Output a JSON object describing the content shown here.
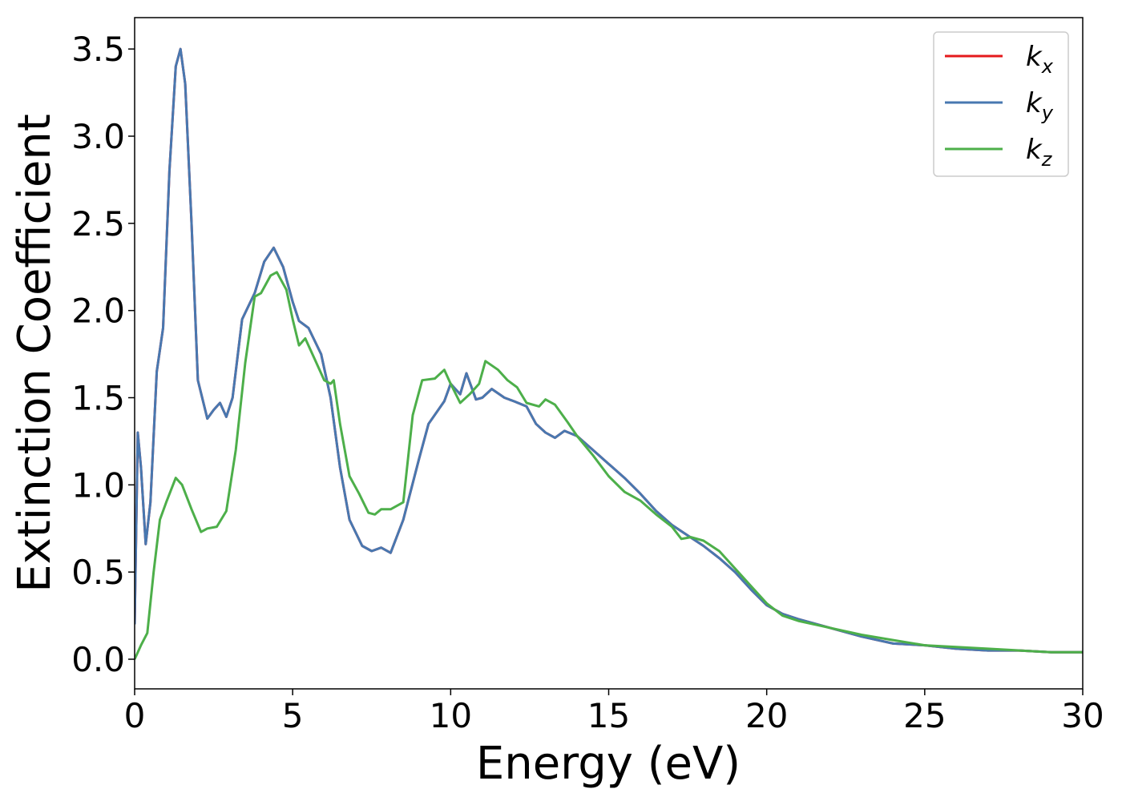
{
  "chart_data": {
    "type": "line",
    "x_label": "Energy (eV)",
    "y_label": "Extinction Coefficient",
    "xlim": [
      0,
      30
    ],
    "xticks": [
      0,
      5,
      10,
      15,
      20,
      25,
      30
    ],
    "ylim": [
      -0.17,
      3.68
    ],
    "yticks": [
      {
        "value": 0,
        "label": "0.0"
      },
      0.5,
      {
        "value": 1,
        "label": "1.0"
      },
      1.5,
      {
        "value": 2,
        "label": "2.0"
      },
      2.5,
      {
        "value": 3,
        "label": "3.0"
      },
      3.5
    ],
    "legend": "upper right",
    "series": [
      {
        "name": "kx",
        "color": "#e41a1c",
        "x": [
          0,
          0.1,
          0.2,
          0.35,
          0.5,
          0.7,
          0.9,
          1.1,
          1.3,
          1.45,
          1.6,
          1.8,
          2.0,
          2.3,
          2.5,
          2.7,
          2.9,
          3.1,
          3.4,
          3.8,
          4.1,
          4.4,
          4.7,
          5.0,
          5.2,
          5.5,
          5.9,
          6.2,
          6.5,
          6.8,
          7.2,
          7.5,
          7.8,
          8.1,
          8.5,
          9.0,
          9.3,
          9.8,
          10.0,
          10.3,
          10.5,
          10.8,
          11.0,
          11.3,
          11.7,
          12.0,
          12.4,
          12.7,
          13.0,
          13.3,
          13.6,
          14.0,
          14.5,
          15.0,
          15.5,
          16.0,
          16.5,
          17.0,
          17.5,
          18.0,
          18.5,
          19.0,
          19.5,
          20.0,
          20.5,
          21,
          22,
          23,
          24,
          25,
          26,
          27,
          28,
          29,
          30
        ],
        "values": [
          0.2,
          1.3,
          1.1,
          0.66,
          0.9,
          1.65,
          1.9,
          2.8,
          3.4,
          3.5,
          3.3,
          2.5,
          1.6,
          1.38,
          1.43,
          1.47,
          1.39,
          1.5,
          1.95,
          2.1,
          2.28,
          2.36,
          2.25,
          2.05,
          1.94,
          1.9,
          1.75,
          1.5,
          1.1,
          0.8,
          0.65,
          0.62,
          0.64,
          0.61,
          0.8,
          1.15,
          1.35,
          1.48,
          1.58,
          1.52,
          1.64,
          1.49,
          1.5,
          1.55,
          1.5,
          1.48,
          1.45,
          1.35,
          1.3,
          1.27,
          1.31,
          1.28,
          1.2,
          1.12,
          1.04,
          0.95,
          0.85,
          0.77,
          0.71,
          0.65,
          0.58,
          0.5,
          0.4,
          0.31,
          0.26,
          0.23,
          0.18,
          0.13,
          0.09,
          0.08,
          0.06,
          0.05,
          0.05,
          0.04,
          0.04
        ]
      },
      {
        "name": "ky",
        "color": "#4878b0",
        "x": [
          0,
          0.1,
          0.2,
          0.35,
          0.5,
          0.7,
          0.9,
          1.1,
          1.3,
          1.45,
          1.6,
          1.8,
          2.0,
          2.3,
          2.5,
          2.7,
          2.9,
          3.1,
          3.4,
          3.8,
          4.1,
          4.4,
          4.7,
          5.0,
          5.2,
          5.5,
          5.9,
          6.2,
          6.5,
          6.8,
          7.2,
          7.5,
          7.8,
          8.1,
          8.5,
          9.0,
          9.3,
          9.8,
          10.0,
          10.3,
          10.5,
          10.8,
          11.0,
          11.3,
          11.7,
          12.0,
          12.4,
          12.7,
          13.0,
          13.3,
          13.6,
          14.0,
          14.5,
          15.0,
          15.5,
          16.0,
          16.5,
          17.0,
          17.5,
          18.0,
          18.5,
          19.0,
          19.5,
          20.0,
          20.5,
          21,
          22,
          23,
          24,
          25,
          26,
          27,
          28,
          29,
          30
        ],
        "values": [
          0.2,
          1.3,
          1.1,
          0.66,
          0.9,
          1.65,
          1.9,
          2.8,
          3.4,
          3.5,
          3.3,
          2.5,
          1.6,
          1.38,
          1.43,
          1.47,
          1.39,
          1.5,
          1.95,
          2.1,
          2.28,
          2.36,
          2.25,
          2.05,
          1.94,
          1.9,
          1.75,
          1.5,
          1.1,
          0.8,
          0.65,
          0.62,
          0.64,
          0.61,
          0.8,
          1.15,
          1.35,
          1.48,
          1.58,
          1.52,
          1.64,
          1.49,
          1.5,
          1.55,
          1.5,
          1.48,
          1.45,
          1.35,
          1.3,
          1.27,
          1.31,
          1.28,
          1.2,
          1.12,
          1.04,
          0.95,
          0.85,
          0.77,
          0.71,
          0.65,
          0.58,
          0.5,
          0.4,
          0.31,
          0.26,
          0.23,
          0.18,
          0.13,
          0.09,
          0.08,
          0.06,
          0.05,
          0.05,
          0.04,
          0.04
        ]
      },
      {
        "name": "kz",
        "color": "#4daf4a",
        "x": [
          0,
          0.2,
          0.4,
          0.6,
          0.8,
          1.0,
          1.3,
          1.5,
          1.8,
          2.1,
          2.3,
          2.6,
          2.9,
          3.2,
          3.5,
          3.8,
          4.0,
          4.3,
          4.5,
          4.8,
          5.0,
          5.2,
          5.4,
          5.7,
          6.0,
          6.2,
          6.3,
          6.5,
          6.8,
          7.1,
          7.4,
          7.6,
          7.8,
          8.1,
          8.5,
          8.8,
          9.1,
          9.5,
          9.8,
          10.0,
          10.3,
          10.6,
          10.9,
          11.1,
          11.5,
          11.8,
          12.1,
          12.4,
          12.8,
          13.0,
          13.3,
          13.7,
          14.0,
          14.5,
          15.0,
          15.5,
          16.0,
          16.5,
          17.0,
          17.3,
          17.6,
          18.0,
          18.5,
          19.0,
          19.5,
          20.0,
          20.5,
          21,
          22,
          23,
          24,
          25,
          26,
          27,
          28,
          29,
          30
        ],
        "values": [
          0.0,
          0.08,
          0.15,
          0.5,
          0.8,
          0.9,
          1.04,
          1.0,
          0.86,
          0.73,
          0.75,
          0.76,
          0.85,
          1.2,
          1.7,
          2.08,
          2.1,
          2.2,
          2.22,
          2.12,
          1.95,
          1.8,
          1.84,
          1.72,
          1.6,
          1.58,
          1.6,
          1.35,
          1.05,
          0.95,
          0.84,
          0.83,
          0.86,
          0.86,
          0.9,
          1.4,
          1.6,
          1.61,
          1.66,
          1.58,
          1.47,
          1.52,
          1.58,
          1.71,
          1.66,
          1.6,
          1.56,
          1.47,
          1.45,
          1.49,
          1.46,
          1.36,
          1.28,
          1.17,
          1.05,
          0.96,
          0.91,
          0.83,
          0.76,
          0.69,
          0.7,
          0.68,
          0.62,
          0.52,
          0.42,
          0.32,
          0.25,
          0.22,
          0.18,
          0.14,
          0.11,
          0.08,
          0.07,
          0.06,
          0.05,
          0.04,
          0.04
        ]
      }
    ]
  }
}
